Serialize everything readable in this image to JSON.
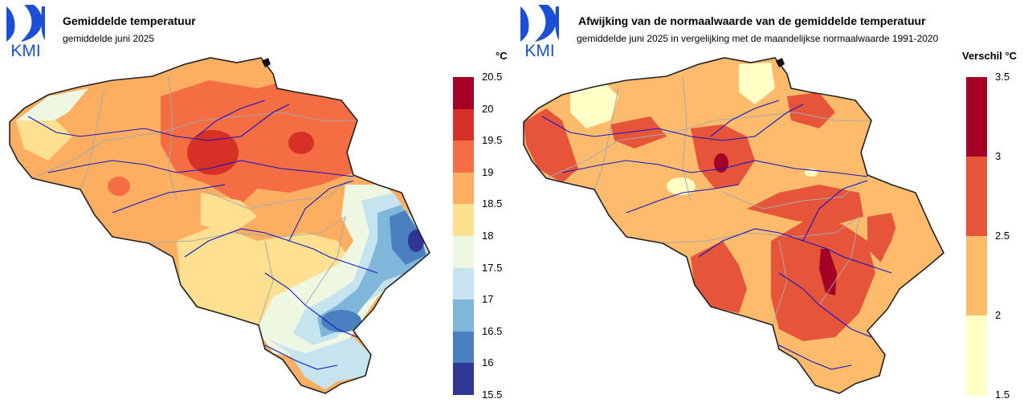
{
  "left": {
    "logo_text": "KMI",
    "title": "Gemiddelde temperatuur",
    "subtitle": "gemiddelde juni 2025",
    "unit": "°C",
    "legend": {
      "ticks": [
        "20.5",
        "20",
        "19.5",
        "19",
        "18.5",
        "18",
        "17.5",
        "17",
        "16.5",
        "16",
        "15.5"
      ],
      "colors": [
        "#a50026",
        "#d73027",
        "#f46d43",
        "#fdae61",
        "#fee090",
        "#eef7e2",
        "#c6e4f0",
        "#7fb6d9",
        "#4a7fc0",
        "#313695"
      ]
    }
  },
  "right": {
    "logo_text": "KMI",
    "title": "Afwijking van de normaalwaarde van de gemiddelde temperatuur",
    "subtitle": "gemiddelde juni 2025 in vergelijking met de maandelijkse normaalwaarde 1991-2020",
    "unit": "Verschil °C",
    "legend": {
      "ticks": [
        "3.5",
        "3",
        "2.5",
        "2",
        "1.5"
      ],
      "colors": [
        "#a50026",
        "#e6553a",
        "#fdbb6b",
        "#ffffc6"
      ]
    }
  }
}
